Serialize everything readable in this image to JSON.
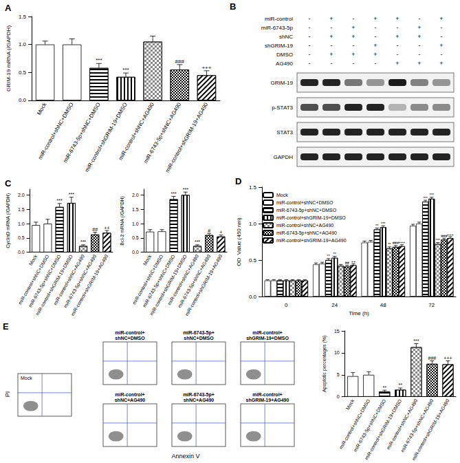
{
  "chart_data": [
    {
      "type": "bar",
      "title": "A",
      "y_label": "GRIM-19 mRNA (/GAPDH)",
      "categories": [
        "Mock",
        "miR-control+shNC+DMSO",
        "miR-6743-5p+shNC+DMSO",
        "miR-control+shGRIM-19+DMSO",
        "miR-control+shNC+AG490",
        "miR-6743-5p+shNC+AG490",
        "miR-control+shGRIM-19+AG490"
      ],
      "values": [
        1.0,
        1.0,
        0.58,
        0.42,
        1.05,
        0.55,
        0.45
      ],
      "errors": [
        0.06,
        0.1,
        0.08,
        0.07,
        0.1,
        0.09,
        0.08
      ],
      "annotations": [
        null,
        null,
        "***",
        "***",
        null,
        "###",
        "+++"
      ],
      "color": "#ffffff",
      "ylim": [
        0,
        1.5
      ],
      "yticks": [
        {
          "value": 0,
          "label": "0.0"
        },
        {
          "value": 0.5,
          "label": "0.5"
        },
        {
          "value": 1,
          "label": "1.0"
        },
        {
          "value": 1.5,
          "label": "1.5"
        }
      ],
      "grid": false
    },
    {
      "type": "bar",
      "title": "C",
      "y_label": "CyclinD mRNA (/GAPDH)",
      "categories": [
        "Mock",
        "miR-control+shNC+DMSO",
        "miR-6743-5p+shNC+DMSO",
        "miR-control+shGRIM-19+DMSO",
        "miR-control+shNC+AG490",
        "miR-6743-5p+shNC+AG490",
        "miR-control+shGRIM-19+AG490"
      ],
      "values": [
        0.95,
        1.0,
        1.58,
        1.72,
        0.22,
        0.62,
        0.68
      ],
      "errors": [
        0.1,
        0.15,
        0.12,
        0.2,
        0.04,
        0.08,
        0.08
      ],
      "annotations": [
        null,
        null,
        "***",
        "***",
        "***",
        "##",
        "++"
      ],
      "color": "#ffffff",
      "ylim": [
        0,
        2.2
      ],
      "yticks": [
        {
          "value": 0,
          "label": "0.0"
        },
        {
          "value": 0.5,
          "label": "0.5"
        },
        {
          "value": 1,
          "label": "1.0"
        },
        {
          "value": 1.5,
          "label": "1.5"
        },
        {
          "value": 2,
          "label": "2.0"
        }
      ],
      "grid": false
    },
    {
      "type": "bar",
      "y_label": "Bcl-2 mRNA (/GAPDH)",
      "categories": [
        "Mock",
        "miR-control+shNC+DMSO",
        "miR-6743-5p+shNC+DMSO",
        "miR-control+shGRIM-19+DMSO",
        "miR-control+shNC+AG490",
        "miR-6743-5p+shNC+AG490",
        "miR-control+shGRIM-19+AG490"
      ],
      "values": [
        0.72,
        0.73,
        1.85,
        2.0,
        0.22,
        0.6,
        0.55
      ],
      "errors": [
        0.07,
        0.06,
        0.1,
        0.1,
        0.04,
        0.06,
        0.05
      ],
      "annotations": [
        null,
        null,
        "***",
        "***",
        "***",
        "#",
        "+"
      ],
      "color": "#ffffff",
      "ylim": [
        0,
        2.2
      ],
      "yticks": [
        {
          "value": 0,
          "label": "0.0"
        },
        {
          "value": 0.5,
          "label": "0.5"
        },
        {
          "value": 1,
          "label": "1.0"
        },
        {
          "value": 1.5,
          "label": "1.5"
        },
        {
          "value": 2,
          "label": "2.0"
        }
      ],
      "grid": false
    },
    {
      "type": "bar",
      "title": "D",
      "x_label": "Time (h)",
      "y_label": "OD  Value (450 nm)",
      "categories": [
        "0",
        "24",
        "48",
        "72"
      ],
      "series": [
        {
          "name": "Mock",
          "color": "#ffffff",
          "values": [
            0.22,
            0.44,
            0.74,
            0.97
          ],
          "errors": [
            0.01,
            0.02,
            0.02,
            0.02
          ],
          "annotations": [
            null,
            null,
            null,
            null
          ]
        },
        {
          "name": "miR-control+shNC+DMSO",
          "color": "#ffffff",
          "values": [
            0.22,
            0.45,
            0.75,
            1.0
          ],
          "errors": [
            0.01,
            0.02,
            0.02,
            0.02
          ],
          "annotations": [
            null,
            null,
            null,
            null
          ]
        },
        {
          "name": "miR-6743-5p+shNC+DMSO",
          "color": "#ffffff",
          "values": [
            0.22,
            0.5,
            0.92,
            1.3
          ],
          "errors": [
            0.01,
            0.02,
            0.02,
            0.02
          ],
          "annotations": [
            null,
            "**",
            "**",
            "***"
          ]
        },
        {
          "name": "miR-control+shGRIM-19+DMSO",
          "color": "#ffffff",
          "values": [
            0.22,
            0.53,
            0.95,
            1.34
          ],
          "errors": [
            0.01,
            0.02,
            0.02,
            0.02
          ],
          "annotations": [
            null,
            "**",
            "***",
            "***"
          ]
        },
        {
          "name": "miR-control+shNC+AG490",
          "color": "#ffffff",
          "values": [
            0.22,
            0.42,
            0.66,
            0.72
          ],
          "errors": [
            0.01,
            0.02,
            0.02,
            0.02
          ],
          "annotations": [
            null,
            null,
            "**",
            "***"
          ]
        },
        {
          "name": "miR-6743-5p+shNC+AG490",
          "color": "#ffffff",
          "values": [
            0.22,
            0.41,
            0.68,
            0.78
          ],
          "errors": [
            0.01,
            0.02,
            0.02,
            0.02
          ],
          "annotations": [
            null,
            "##",
            "###",
            "###"
          ]
        },
        {
          "name": "miR-control+shGRIM-19+AG490",
          "color": "#ffffff",
          "values": [
            0.22,
            0.43,
            0.69,
            0.8
          ],
          "errors": [
            0.01,
            0.02,
            0.02,
            0.02
          ],
          "annotations": [
            null,
            "++",
            "+++",
            "+++"
          ]
        }
      ],
      "ylim": [
        0,
        1.5
      ],
      "yticks": [
        {
          "value": 0,
          "label": "0.0"
        },
        {
          "value": 0.5,
          "label": "0.5"
        },
        {
          "value": 1,
          "label": "1.0"
        },
        {
          "value": 1.5,
          "label": "1.5"
        }
      ],
      "legend": "upper left",
      "grid": false
    },
    {
      "type": "bar",
      "y_label": "Apoptotic percentages (%)",
      "categories": [
        "Mock",
        "miR-control+shNC+DMSO",
        "miR-6743-5p+shNC+DMSO",
        "miR-control+shGRIM-19+DMSO",
        "miR-control+shNC+AG490",
        "miR-6743-5p+shNC+AG490",
        "miR-control+shGRIM-19+AG490"
      ],
      "values": [
        4.7,
        5.0,
        1.2,
        1.6,
        11.3,
        7.5,
        7.4
      ],
      "errors": [
        0.8,
        0.7,
        0.3,
        0.4,
        0.8,
        0.7,
        0.8
      ],
      "annotations": [
        null,
        null,
        "**",
        "**",
        "***",
        "###",
        "+++"
      ],
      "color": "#ffffff",
      "ylim": [
        0,
        15
      ],
      "yticks": [
        0,
        5,
        10,
        15
      ],
      "grid": false
    }
  ],
  "blot": {
    "title": "B",
    "treatments": [
      {
        "name": "miR-control",
        "signs": [
          "-",
          "+",
          "-",
          "+",
          "+",
          "-",
          "+"
        ]
      },
      {
        "name": "miR-6743-5p",
        "signs": [
          "-",
          "-",
          "+",
          "-",
          "-",
          "+",
          "-"
        ]
      },
      {
        "name": "shNC",
        "signs": [
          "-",
          "+",
          "+",
          "-",
          "+",
          "+",
          "-"
        ]
      },
      {
        "name": "shGRIM-19",
        "signs": [
          "-",
          "-",
          "-",
          "+",
          "-",
          "-",
          "+"
        ]
      },
      {
        "name": "DMSO",
        "signs": [
          "-",
          "+",
          "+",
          "+",
          "-",
          "-",
          "-"
        ]
      },
      {
        "name": "AG490",
        "signs": [
          "-",
          "-",
          "-",
          "-",
          "+",
          "+",
          "+"
        ]
      }
    ],
    "bands": [
      {
        "name": "GRIM-19",
        "intensity": [
          1.0,
          1.0,
          0.6,
          0.45,
          1.05,
          0.55,
          0.45
        ]
      },
      {
        "name": "p-STAT3",
        "intensity": [
          0.8,
          0.8,
          1.0,
          1.0,
          0.3,
          0.5,
          0.5
        ]
      },
      {
        "name": "STAT3",
        "intensity": [
          1.0,
          1.0,
          1.0,
          1.0,
          1.0,
          1.0,
          1.0
        ]
      },
      {
        "name": "GAPDH",
        "intensity": [
          1.0,
          1.0,
          1.0,
          1.0,
          1.0,
          1.0,
          1.0
        ]
      }
    ]
  },
  "flow": {
    "title": "E",
    "y_label": "PI",
    "x_label": "Annexin V",
    "plots": [
      "Mock",
      "miR-control+\nshNC+DMSO",
      "miR-6743-5p+\nshNC+DMSO",
      "miR-control+\nshGRIM-19+DMSO",
      "miR-control+\nshNC+AG490",
      "miR-6743-5p+\nshNC+AG490",
      "miR-control+\nshGRIM-19+AG490"
    ]
  }
}
